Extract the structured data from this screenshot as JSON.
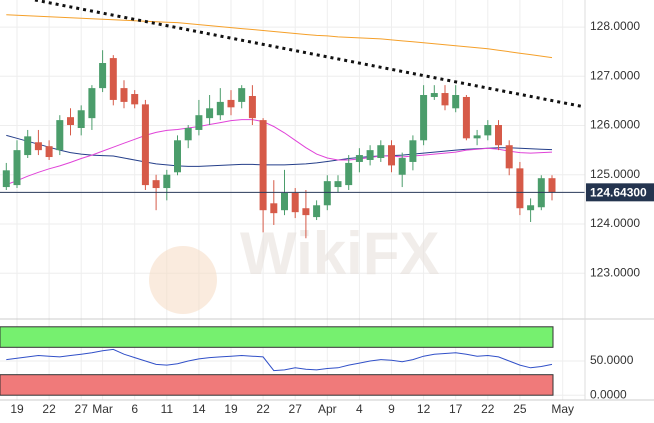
{
  "watermark": "WikiFX",
  "chart_data": [
    {
      "type": "candlestick",
      "categories": [
        null,
        "19",
        null,
        null,
        "22",
        null,
        null,
        "27",
        null,
        "Mar",
        null,
        null,
        "6",
        null,
        null,
        "11",
        null,
        null,
        "14",
        null,
        null,
        "19",
        null,
        null,
        "22",
        null,
        null,
        "27",
        null,
        null,
        "Apr",
        null,
        null,
        "4",
        null,
        null,
        "9",
        null,
        null,
        "12",
        null,
        null,
        "17",
        null,
        null,
        "22",
        null,
        null,
        "25",
        null,
        null,
        null,
        "May"
      ],
      "open": [
        124.75,
        124.79,
        125.4,
        125.66,
        125.58,
        125.5,
        126.17,
        125.95,
        126.15,
        126.76,
        127.37,
        126.76,
        126.64,
        126.43,
        124.89,
        124.73,
        125.05,
        125.7,
        125.91,
        126.15,
        126.21,
        126.52,
        126.48,
        126.6,
        126.11,
        124.42,
        124.28,
        124.63,
        124.32,
        124.14,
        124.38,
        124.75,
        124.79,
        125.26,
        125.3,
        125.34,
        125.6,
        125.0,
        125.26,
        125.7,
        126.58,
        126.66,
        126.35,
        126.58,
        125.74,
        125.8,
        126.01,
        125.6,
        125.13,
        124.28,
        124.34,
        124.93,
        null
      ],
      "high": [
        125.24,
        125.7,
        125.91,
        125.91,
        125.7,
        126.21,
        126.35,
        126.41,
        126.82,
        127.53,
        127.43,
        126.92,
        126.72,
        126.52,
        125.0,
        125.1,
        125.8,
        126.01,
        126.52,
        126.62,
        126.76,
        126.72,
        126.82,
        126.82,
        126.15,
        124.89,
        125.1,
        124.73,
        124.69,
        124.48,
        124.99,
        124.99,
        125.4,
        125.54,
        125.6,
        125.7,
        125.7,
        125.45,
        125.8,
        126.82,
        126.82,
        126.82,
        126.82,
        126.62,
        125.91,
        126.11,
        126.11,
        125.7,
        125.26,
        124.52,
        124.99,
        124.99,
        null
      ],
      "low": [
        124.69,
        124.73,
        125.34,
        125.4,
        125.3,
        125.4,
        125.8,
        125.8,
        125.91,
        126.68,
        126.41,
        126.35,
        126.35,
        124.69,
        124.28,
        124.48,
        124.99,
        125.54,
        125.8,
        126.01,
        126.11,
        126.21,
        126.35,
        126.01,
        123.83,
        123.98,
        124.18,
        124.12,
        123.71,
        124.08,
        124.28,
        124.65,
        124.69,
        125.05,
        125.19,
        125.26,
        125.05,
        124.75,
        125.09,
        125.6,
        126.52,
        126.31,
        126.27,
        125.7,
        125.6,
        125.7,
        125.5,
        124.99,
        124.18,
        124.04,
        124.28,
        124.48,
        null
      ],
      "close": [
        125.09,
        125.5,
        125.78,
        125.5,
        125.36,
        126.11,
        126.01,
        126.31,
        126.76,
        127.27,
        126.52,
        126.48,
        126.43,
        124.79,
        124.73,
        125.0,
        125.7,
        125.95,
        126.21,
        126.35,
        126.48,
        126.37,
        126.76,
        126.15,
        124.28,
        124.22,
        124.63,
        124.24,
        124.18,
        124.38,
        124.87,
        124.87,
        125.24,
        125.4,
        125.5,
        125.6,
        125.19,
        125.34,
        125.7,
        126.62,
        126.66,
        126.41,
        126.62,
        125.74,
        125.8,
        126.01,
        125.6,
        125.13,
        124.32,
        124.38,
        124.93,
        124.64,
        null
      ],
      "up_color": "#4b9d6b",
      "down_color": "#d65a48",
      "moving_averages": [
        {
          "color": "#f5a02a",
          "values": [
            128.25,
            128.24,
            128.23,
            128.22,
            128.21,
            128.2,
            128.19,
            128.18,
            128.17,
            128.16,
            128.15,
            128.14,
            128.13,
            128.12,
            128.11,
            128.1,
            128.09,
            128.07,
            128.05,
            128.03,
            128.01,
            127.99,
            127.97,
            127.95,
            127.93,
            127.91,
            127.89,
            127.87,
            127.85,
            127.83,
            127.82,
            127.8,
            127.79,
            127.78,
            127.77,
            127.76,
            127.74,
            127.72,
            127.7,
            127.68,
            127.66,
            127.64,
            127.62,
            127.6,
            127.58,
            127.56,
            127.53,
            127.5,
            127.47,
            127.44,
            127.41,
            127.38,
            null
          ]
        },
        {
          "color": "#253f8a",
          "values": [
            125.8,
            125.74,
            125.68,
            125.62,
            125.56,
            125.5,
            125.45,
            125.42,
            125.4,
            125.39,
            125.38,
            125.34,
            125.3,
            125.26,
            125.22,
            125.2,
            125.18,
            125.17,
            125.17,
            125.18,
            125.19,
            125.2,
            125.21,
            125.21,
            125.2,
            125.2,
            125.2,
            125.21,
            125.22,
            125.24,
            125.27,
            125.3,
            125.33,
            125.35,
            125.37,
            125.38,
            125.39,
            125.4,
            125.42,
            125.44,
            125.46,
            125.48,
            125.5,
            125.52,
            125.53,
            125.54,
            125.55,
            125.55,
            125.54,
            125.53,
            125.52,
            125.51,
            null
          ]
        },
        {
          "color": "#e043d8",
          "values": [
            124.8,
            124.88,
            124.97,
            125.05,
            125.12,
            125.18,
            125.25,
            125.33,
            125.4,
            125.48,
            125.56,
            125.64,
            125.72,
            125.8,
            125.86,
            125.9,
            125.92,
            125.95,
            125.98,
            126.02,
            126.06,
            126.1,
            126.12,
            126.12,
            126.08,
            125.98,
            125.85,
            125.7,
            125.55,
            125.42,
            125.34,
            125.3,
            125.3,
            125.32,
            125.35,
            125.38,
            125.38,
            125.36,
            125.38,
            125.4,
            125.42,
            125.44,
            125.46,
            125.5,
            125.52,
            125.54,
            125.52,
            125.48,
            125.45,
            125.44,
            125.45,
            125.46,
            null
          ]
        }
      ],
      "last_price": {
        "value": 124.643,
        "label": "124.64300"
      },
      "ylim": [
        122.09,
        128.55
      ],
      "yticks": [
        {
          "value": 128,
          "label": "128.0000"
        },
        {
          "value": 127,
          "label": "127.0000"
        },
        {
          "value": 126,
          "label": "126.0000"
        },
        {
          "value": 125,
          "label": "125.0000"
        },
        {
          "value": 124,
          "label": "124.0000"
        },
        {
          "value": 123,
          "label": "123.0000"
        }
      ],
      "grid": true
    },
    {
      "type": "line",
      "color": "#3150c8",
      "values": [
        52,
        54,
        56,
        58,
        57,
        56,
        58,
        60,
        62,
        65,
        67,
        60,
        55,
        50,
        45,
        44,
        46,
        50,
        53,
        55,
        56,
        57,
        58,
        57,
        56,
        36,
        37,
        40,
        38,
        37,
        39,
        40,
        44,
        47,
        50,
        52,
        51,
        49,
        52,
        57,
        60,
        61,
        62,
        60,
        57,
        58,
        56,
        50,
        44,
        40,
        42,
        45,
        null
      ],
      "bands": [
        {
          "from": 70,
          "to": 100,
          "color": "#76f06f"
        },
        {
          "from": 0,
          "to": 30,
          "color": "#f07a7a"
        }
      ],
      "ylim": [
        -7,
        107
      ],
      "yticks": [
        {
          "value": 50,
          "label": "50.0000"
        },
        {
          "value": 0,
          "label": "0.0000"
        }
      ]
    }
  ]
}
